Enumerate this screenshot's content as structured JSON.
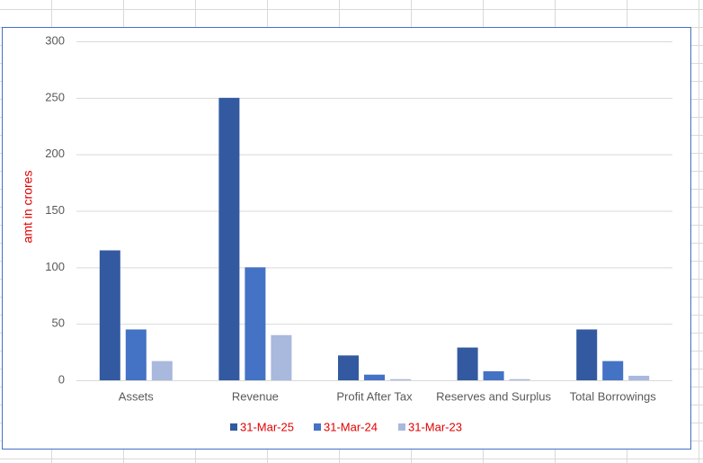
{
  "chart_data": {
    "type": "bar",
    "y_label": "amt in crores",
    "categories": [
      "Assets",
      "Revenue",
      "Profit After Tax",
      "Reserves and Surplus",
      "Total Borrowings"
    ],
    "series": [
      {
        "name": "31-Mar-25",
        "color": "#335aa1",
        "values": [
          115,
          250,
          22,
          29,
          45
        ]
      },
      {
        "name": "31-Mar-24",
        "color": "#4472c4",
        "values": [
          45,
          100,
          5,
          8,
          17
        ]
      },
      {
        "name": "31-Mar-23",
        "color": "#a9b8dd",
        "values": [
          17,
          40,
          1,
          1,
          4
        ]
      }
    ],
    "ylim": [
      0,
      300
    ],
    "yticks": [
      0,
      50,
      100,
      150,
      200,
      250,
      300
    ],
    "grid": true,
    "legend": "bottom"
  }
}
